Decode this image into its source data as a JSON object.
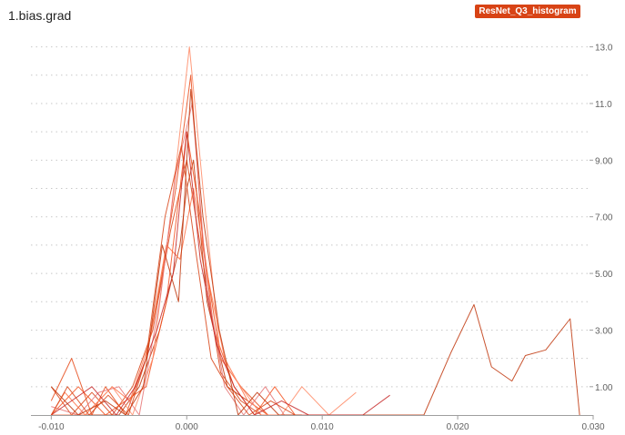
{
  "header": {
    "title": "1.bias.grad",
    "run_label": "ResNet_Q3_histogram"
  },
  "colors": {
    "accent": "#d84315",
    "grid": "#c8c8c8",
    "axis": "#9e9e9e",
    "series_palette": [
      "#bf360c",
      "#d84315",
      "#e64a19",
      "#f4511e",
      "#ff7043",
      "#ff8a65",
      "#e57373",
      "#c62828"
    ]
  },
  "chart_data": {
    "type": "line",
    "title": "1.bias.grad",
    "xlabel": "",
    "ylabel": "",
    "xlim": [
      -0.0115,
      0.03
    ],
    "ylim": [
      0,
      13.5
    ],
    "xticks": [
      -0.01,
      0.0,
      0.01,
      0.02,
      0.03
    ],
    "xtick_labels": [
      "-0.010",
      "0.000",
      "0.010",
      "0.020",
      "0.030"
    ],
    "yticks": [
      1.0,
      3.0,
      5.0,
      7.0,
      9.0,
      11.0,
      13.0
    ],
    "ytick_labels": [
      "1.00",
      "3.00",
      "5.00",
      "7.00",
      "9.00",
      "11.0",
      "13.0"
    ],
    "grid": true,
    "series": [
      {
        "x": [
          -0.01,
          -0.009,
          -0.008,
          -0.0065,
          -0.005,
          -0.0035,
          -0.002,
          -0.0005,
          0.0,
          0.0005,
          0.0015,
          0.003,
          0.0045,
          0.006,
          0.0075,
          0.01,
          0.012,
          0.015,
          0.0175,
          0.0195,
          0.0212,
          0.0225,
          0.024,
          0.025,
          0.0265,
          0.0283,
          0.029
        ],
        "y": [
          0,
          0,
          0,
          0,
          0,
          1,
          3,
          6,
          8,
          9,
          4,
          1,
          0.5,
          0,
          0,
          0,
          0,
          0,
          0,
          2.2,
          3.9,
          1.7,
          1.2,
          2.1,
          2.3,
          3.4,
          0
        ]
      },
      {
        "x": [
          -0.01,
          -0.0085,
          -0.007,
          -0.0055,
          -0.004,
          -0.0025,
          -0.0012,
          0.0,
          0.001,
          0.0025,
          0.004,
          0.0055,
          0.007,
          0.009
        ],
        "y": [
          1.0,
          0,
          0.8,
          0,
          1.0,
          3.0,
          6.5,
          9.0,
          6.0,
          1.5,
          0.5,
          0,
          0,
          0
        ]
      },
      {
        "x": [
          -0.01,
          -0.0085,
          -0.007,
          -0.006,
          -0.0045,
          -0.003,
          -0.0018,
          -0.0008,
          0.0003,
          0.0012,
          0.0025,
          0.004,
          0.006,
          0.008,
          0.01
        ],
        "y": [
          0.5,
          2.0,
          0,
          1.0,
          0,
          2.0,
          5.0,
          8.0,
          12.0,
          6.0,
          2.0,
          1.0,
          0,
          0,
          0
        ]
      },
      {
        "x": [
          -0.01,
          -0.008,
          -0.006,
          -0.0045,
          -0.003,
          -0.0015,
          0.0,
          0.001,
          0.002,
          0.0035,
          0.005,
          0.0065,
          0.008,
          0.01
        ],
        "y": [
          0,
          1.0,
          0,
          0.5,
          1.0,
          4.0,
          10.0,
          7.0,
          3.0,
          1.0,
          0,
          1.0,
          0,
          0
        ]
      },
      {
        "x": [
          -0.01,
          -0.009,
          -0.0075,
          -0.0055,
          -0.0042,
          -0.0028,
          -0.0015,
          -0.0005,
          0.0005,
          0.0015,
          0.0028,
          0.0045,
          0.006,
          0.0085
        ],
        "y": [
          0,
          0.8,
          0,
          1.0,
          0.5,
          2.5,
          6.0,
          5.5,
          8.0,
          5.0,
          2.0,
          0.5,
          0,
          0
        ]
      },
      {
        "x": [
          -0.01,
          -0.0075,
          -0.0055,
          -0.004,
          -0.0025,
          -0.0012,
          0.0002,
          0.0012,
          0.0025,
          0.004,
          0.0055,
          0.007,
          0.0085,
          0.0105,
          0.0125
        ],
        "y": [
          0,
          0,
          1.0,
          0,
          2.0,
          7.0,
          13.0,
          8.0,
          2.0,
          1.0,
          0,
          0,
          1.0,
          0,
          0.8
        ]
      },
      {
        "x": [
          -0.01,
          -0.008,
          -0.0065,
          -0.005,
          -0.0035,
          -0.002,
          -0.0008,
          0.0004,
          0.0015,
          0.0028,
          0.0042,
          0.0058,
          0.0072,
          0.009
        ],
        "y": [
          0.3,
          0,
          0.8,
          1.0,
          0,
          4.0,
          8.5,
          11.0,
          4.5,
          1.0,
          0,
          1.0,
          0,
          0
        ]
      },
      {
        "x": [
          -0.01,
          -0.0085,
          -0.007,
          -0.0052,
          -0.0038,
          -0.0022,
          -0.001,
          0.0,
          0.001,
          0.0022,
          0.0035,
          0.005,
          0.007,
          0.009,
          0.011,
          0.013,
          0.015
        ],
        "y": [
          0,
          0.5,
          1.0,
          0,
          1.0,
          3.0,
          5.0,
          10.0,
          5.5,
          2.5,
          1.0,
          0,
          0.5,
          0,
          0,
          0,
          0.7
        ]
      },
      {
        "x": [
          -0.01,
          -0.008,
          -0.006,
          -0.0045,
          -0.0032,
          -0.0018,
          -0.0006,
          0.0003,
          0.0012,
          0.0024,
          0.0038,
          0.0052,
          0.0068,
          0.0085
        ],
        "y": [
          1.0,
          0,
          0.5,
          0,
          1.0,
          6.0,
          4.0,
          11.5,
          7.0,
          3.0,
          0,
          0.8,
          0,
          0
        ]
      },
      {
        "x": [
          -0.01,
          -0.0088,
          -0.0072,
          -0.0058,
          -0.0043,
          -0.003,
          -0.0016,
          -0.0004,
          0.0006,
          0.0018,
          0.003,
          0.0046,
          0.0062,
          0.008
        ],
        "y": [
          0,
          1.0,
          0,
          0.7,
          0,
          2.0,
          7.0,
          9.5,
          6.0,
          2.0,
          1.0,
          0,
          0.5,
          0
        ]
      }
    ]
  }
}
